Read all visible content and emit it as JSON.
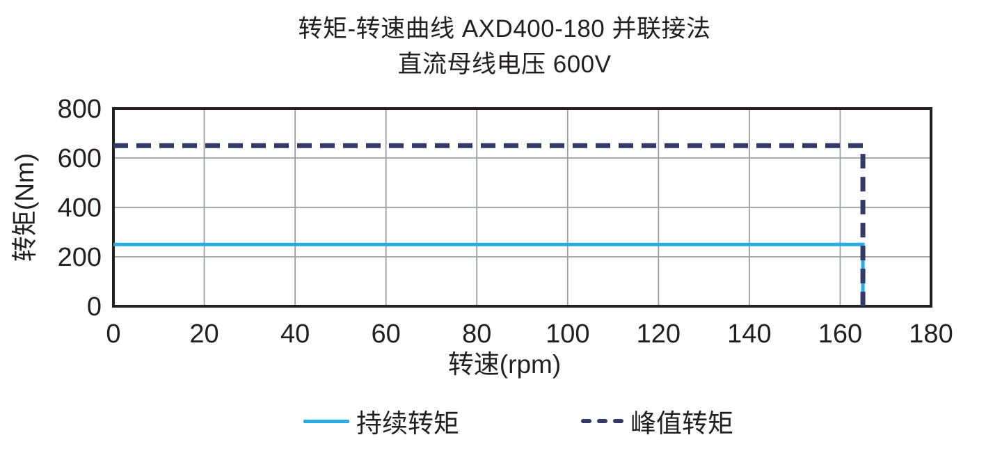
{
  "title": {
    "line1": "转矩-转速曲线 AXD400-180 并联接法",
    "line2": "直流母线电压 600V"
  },
  "colors": {
    "text": "#231f20",
    "axis": "#231f20",
    "grid": "#9d9fa2",
    "continuous": "#29abe2",
    "peak": "#333a68"
  },
  "chart_data": {
    "type": "line",
    "title": "转矩-转速曲线 AXD400-180 并联接法",
    "subtitle": "直流母线电压 600V",
    "xlabel": "转速(rpm)",
    "ylabel": "转矩(Nm)",
    "xlim": [
      0,
      180
    ],
    "ylim": [
      0,
      800
    ],
    "xticks": [
      0,
      20,
      40,
      60,
      80,
      100,
      120,
      140,
      160,
      180
    ],
    "yticks": [
      0,
      200,
      400,
      600,
      800
    ],
    "grid": true,
    "legend_position": "bottom",
    "series": [
      {
        "name": "持续转矩",
        "style": "solid",
        "color": "#29abe2",
        "x": [
          0,
          165,
          165
        ],
        "y": [
          250,
          250,
          0
        ]
      },
      {
        "name": "峰值转矩",
        "style": "dashed",
        "color": "#333a68",
        "x": [
          0,
          165,
          165
        ],
        "y": [
          650,
          650,
          0
        ]
      }
    ]
  },
  "legend": {
    "items": [
      {
        "label": "持续转矩",
        "style": "solid"
      },
      {
        "label": "峰值转矩",
        "style": "dashed"
      }
    ]
  }
}
